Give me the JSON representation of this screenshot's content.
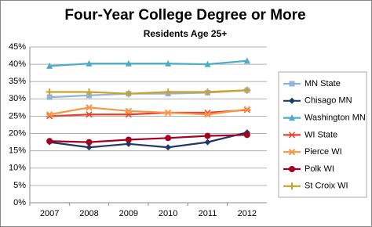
{
  "chart_data": {
    "type": "line",
    "title": "Four-Year College Degree or More",
    "subtitle": "Residents Age 25+",
    "categories": [
      "2007",
      "2008",
      "2009",
      "2010",
      "2011",
      "2012"
    ],
    "ylim": [
      0,
      45
    ],
    "yticks": [
      {
        "value": 0,
        "label": "0%"
      },
      {
        "value": 5,
        "label": "5%"
      },
      {
        "value": 10,
        "label": "10%"
      },
      {
        "value": 15,
        "label": "15%"
      },
      {
        "value": 20,
        "label": "20%"
      },
      {
        "value": 25,
        "label": "25%"
      },
      {
        "value": 30,
        "label": "30%"
      },
      {
        "value": 35,
        "label": "35%"
      },
      {
        "value": 40,
        "label": "40%"
      },
      {
        "value": 45,
        "label": "45%"
      }
    ],
    "grid": true,
    "legend": "right",
    "series": [
      {
        "name": "MN State",
        "color": "#95b3d7",
        "marker": "square",
        "values": [
          30.5,
          31,
          31.5,
          31.5,
          31.8,
          32.5
        ]
      },
      {
        "name": "Chisago MN",
        "color": "#1f3864",
        "marker": "diamond",
        "values": [
          17.5,
          16,
          17,
          16,
          17.5,
          20.3
        ]
      },
      {
        "name": "Washington MN",
        "color": "#4bacc6",
        "marker": "triangle",
        "values": [
          39.5,
          40.2,
          40.2,
          40.2,
          40,
          41
        ]
      },
      {
        "name": "WI State",
        "color": "#e8412a",
        "marker": "asterisk",
        "values": [
          25,
          25.5,
          25.5,
          26,
          26,
          26.8
        ]
      },
      {
        "name": "Pierce WI",
        "color": "#f79646",
        "marker": "x",
        "values": [
          25.5,
          27.5,
          26.5,
          26,
          25.5,
          27
        ]
      },
      {
        "name": "Polk WI",
        "color": "#a50021",
        "marker": "circle",
        "values": [
          17.8,
          17.5,
          18.2,
          18.7,
          19.3,
          19.6
        ]
      },
      {
        "name": "St Croix WI",
        "color": "#c9a227",
        "marker": "plus",
        "values": [
          32,
          32,
          31.5,
          32,
          32,
          32.5
        ]
      }
    ]
  }
}
